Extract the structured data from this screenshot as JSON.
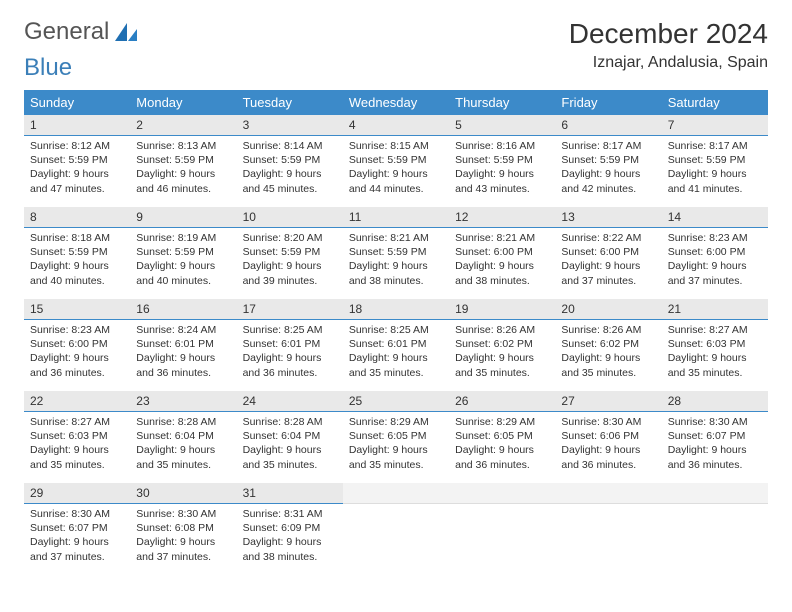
{
  "logo": {
    "text1": "General",
    "text2": "Blue"
  },
  "title": "December 2024",
  "location": "Iznajar, Andalusia, Spain",
  "colors": {
    "header_bg": "#3c8ac9",
    "header_fg": "#ffffff",
    "daynum_bg": "#e9e9e9",
    "daynum_border": "#3c8ac9",
    "text": "#333333"
  },
  "weekdays": [
    "Sunday",
    "Monday",
    "Tuesday",
    "Wednesday",
    "Thursday",
    "Friday",
    "Saturday"
  ],
  "days": [
    {
      "n": "1",
      "sr": "Sunrise: 8:12 AM",
      "ss": "Sunset: 5:59 PM",
      "d1": "Daylight: 9 hours",
      "d2": "and 47 minutes."
    },
    {
      "n": "2",
      "sr": "Sunrise: 8:13 AM",
      "ss": "Sunset: 5:59 PM",
      "d1": "Daylight: 9 hours",
      "d2": "and 46 minutes."
    },
    {
      "n": "3",
      "sr": "Sunrise: 8:14 AM",
      "ss": "Sunset: 5:59 PM",
      "d1": "Daylight: 9 hours",
      "d2": "and 45 minutes."
    },
    {
      "n": "4",
      "sr": "Sunrise: 8:15 AM",
      "ss": "Sunset: 5:59 PM",
      "d1": "Daylight: 9 hours",
      "d2": "and 44 minutes."
    },
    {
      "n": "5",
      "sr": "Sunrise: 8:16 AM",
      "ss": "Sunset: 5:59 PM",
      "d1": "Daylight: 9 hours",
      "d2": "and 43 minutes."
    },
    {
      "n": "6",
      "sr": "Sunrise: 8:17 AM",
      "ss": "Sunset: 5:59 PM",
      "d1": "Daylight: 9 hours",
      "d2": "and 42 minutes."
    },
    {
      "n": "7",
      "sr": "Sunrise: 8:17 AM",
      "ss": "Sunset: 5:59 PM",
      "d1": "Daylight: 9 hours",
      "d2": "and 41 minutes."
    },
    {
      "n": "8",
      "sr": "Sunrise: 8:18 AM",
      "ss": "Sunset: 5:59 PM",
      "d1": "Daylight: 9 hours",
      "d2": "and 40 minutes."
    },
    {
      "n": "9",
      "sr": "Sunrise: 8:19 AM",
      "ss": "Sunset: 5:59 PM",
      "d1": "Daylight: 9 hours",
      "d2": "and 40 minutes."
    },
    {
      "n": "10",
      "sr": "Sunrise: 8:20 AM",
      "ss": "Sunset: 5:59 PM",
      "d1": "Daylight: 9 hours",
      "d2": "and 39 minutes."
    },
    {
      "n": "11",
      "sr": "Sunrise: 8:21 AM",
      "ss": "Sunset: 5:59 PM",
      "d1": "Daylight: 9 hours",
      "d2": "and 38 minutes."
    },
    {
      "n": "12",
      "sr": "Sunrise: 8:21 AM",
      "ss": "Sunset: 6:00 PM",
      "d1": "Daylight: 9 hours",
      "d2": "and 38 minutes."
    },
    {
      "n": "13",
      "sr": "Sunrise: 8:22 AM",
      "ss": "Sunset: 6:00 PM",
      "d1": "Daylight: 9 hours",
      "d2": "and 37 minutes."
    },
    {
      "n": "14",
      "sr": "Sunrise: 8:23 AM",
      "ss": "Sunset: 6:00 PM",
      "d1": "Daylight: 9 hours",
      "d2": "and 37 minutes."
    },
    {
      "n": "15",
      "sr": "Sunrise: 8:23 AM",
      "ss": "Sunset: 6:00 PM",
      "d1": "Daylight: 9 hours",
      "d2": "and 36 minutes."
    },
    {
      "n": "16",
      "sr": "Sunrise: 8:24 AM",
      "ss": "Sunset: 6:01 PM",
      "d1": "Daylight: 9 hours",
      "d2": "and 36 minutes."
    },
    {
      "n": "17",
      "sr": "Sunrise: 8:25 AM",
      "ss": "Sunset: 6:01 PM",
      "d1": "Daylight: 9 hours",
      "d2": "and 36 minutes."
    },
    {
      "n": "18",
      "sr": "Sunrise: 8:25 AM",
      "ss": "Sunset: 6:01 PM",
      "d1": "Daylight: 9 hours",
      "d2": "and 35 minutes."
    },
    {
      "n": "19",
      "sr": "Sunrise: 8:26 AM",
      "ss": "Sunset: 6:02 PM",
      "d1": "Daylight: 9 hours",
      "d2": "and 35 minutes."
    },
    {
      "n": "20",
      "sr": "Sunrise: 8:26 AM",
      "ss": "Sunset: 6:02 PM",
      "d1": "Daylight: 9 hours",
      "d2": "and 35 minutes."
    },
    {
      "n": "21",
      "sr": "Sunrise: 8:27 AM",
      "ss": "Sunset: 6:03 PM",
      "d1": "Daylight: 9 hours",
      "d2": "and 35 minutes."
    },
    {
      "n": "22",
      "sr": "Sunrise: 8:27 AM",
      "ss": "Sunset: 6:03 PM",
      "d1": "Daylight: 9 hours",
      "d2": "and 35 minutes."
    },
    {
      "n": "23",
      "sr": "Sunrise: 8:28 AM",
      "ss": "Sunset: 6:04 PM",
      "d1": "Daylight: 9 hours",
      "d2": "and 35 minutes."
    },
    {
      "n": "24",
      "sr": "Sunrise: 8:28 AM",
      "ss": "Sunset: 6:04 PM",
      "d1": "Daylight: 9 hours",
      "d2": "and 35 minutes."
    },
    {
      "n": "25",
      "sr": "Sunrise: 8:29 AM",
      "ss": "Sunset: 6:05 PM",
      "d1": "Daylight: 9 hours",
      "d2": "and 35 minutes."
    },
    {
      "n": "26",
      "sr": "Sunrise: 8:29 AM",
      "ss": "Sunset: 6:05 PM",
      "d1": "Daylight: 9 hours",
      "d2": "and 36 minutes."
    },
    {
      "n": "27",
      "sr": "Sunrise: 8:30 AM",
      "ss": "Sunset: 6:06 PM",
      "d1": "Daylight: 9 hours",
      "d2": "and 36 minutes."
    },
    {
      "n": "28",
      "sr": "Sunrise: 8:30 AM",
      "ss": "Sunset: 6:07 PM",
      "d1": "Daylight: 9 hours",
      "d2": "and 36 minutes."
    },
    {
      "n": "29",
      "sr": "Sunrise: 8:30 AM",
      "ss": "Sunset: 6:07 PM",
      "d1": "Daylight: 9 hours",
      "d2": "and 37 minutes."
    },
    {
      "n": "30",
      "sr": "Sunrise: 8:30 AM",
      "ss": "Sunset: 6:08 PM",
      "d1": "Daylight: 9 hours",
      "d2": "and 37 minutes."
    },
    {
      "n": "31",
      "sr": "Sunrise: 8:31 AM",
      "ss": "Sunset: 6:09 PM",
      "d1": "Daylight: 9 hours",
      "d2": "and 38 minutes."
    }
  ]
}
